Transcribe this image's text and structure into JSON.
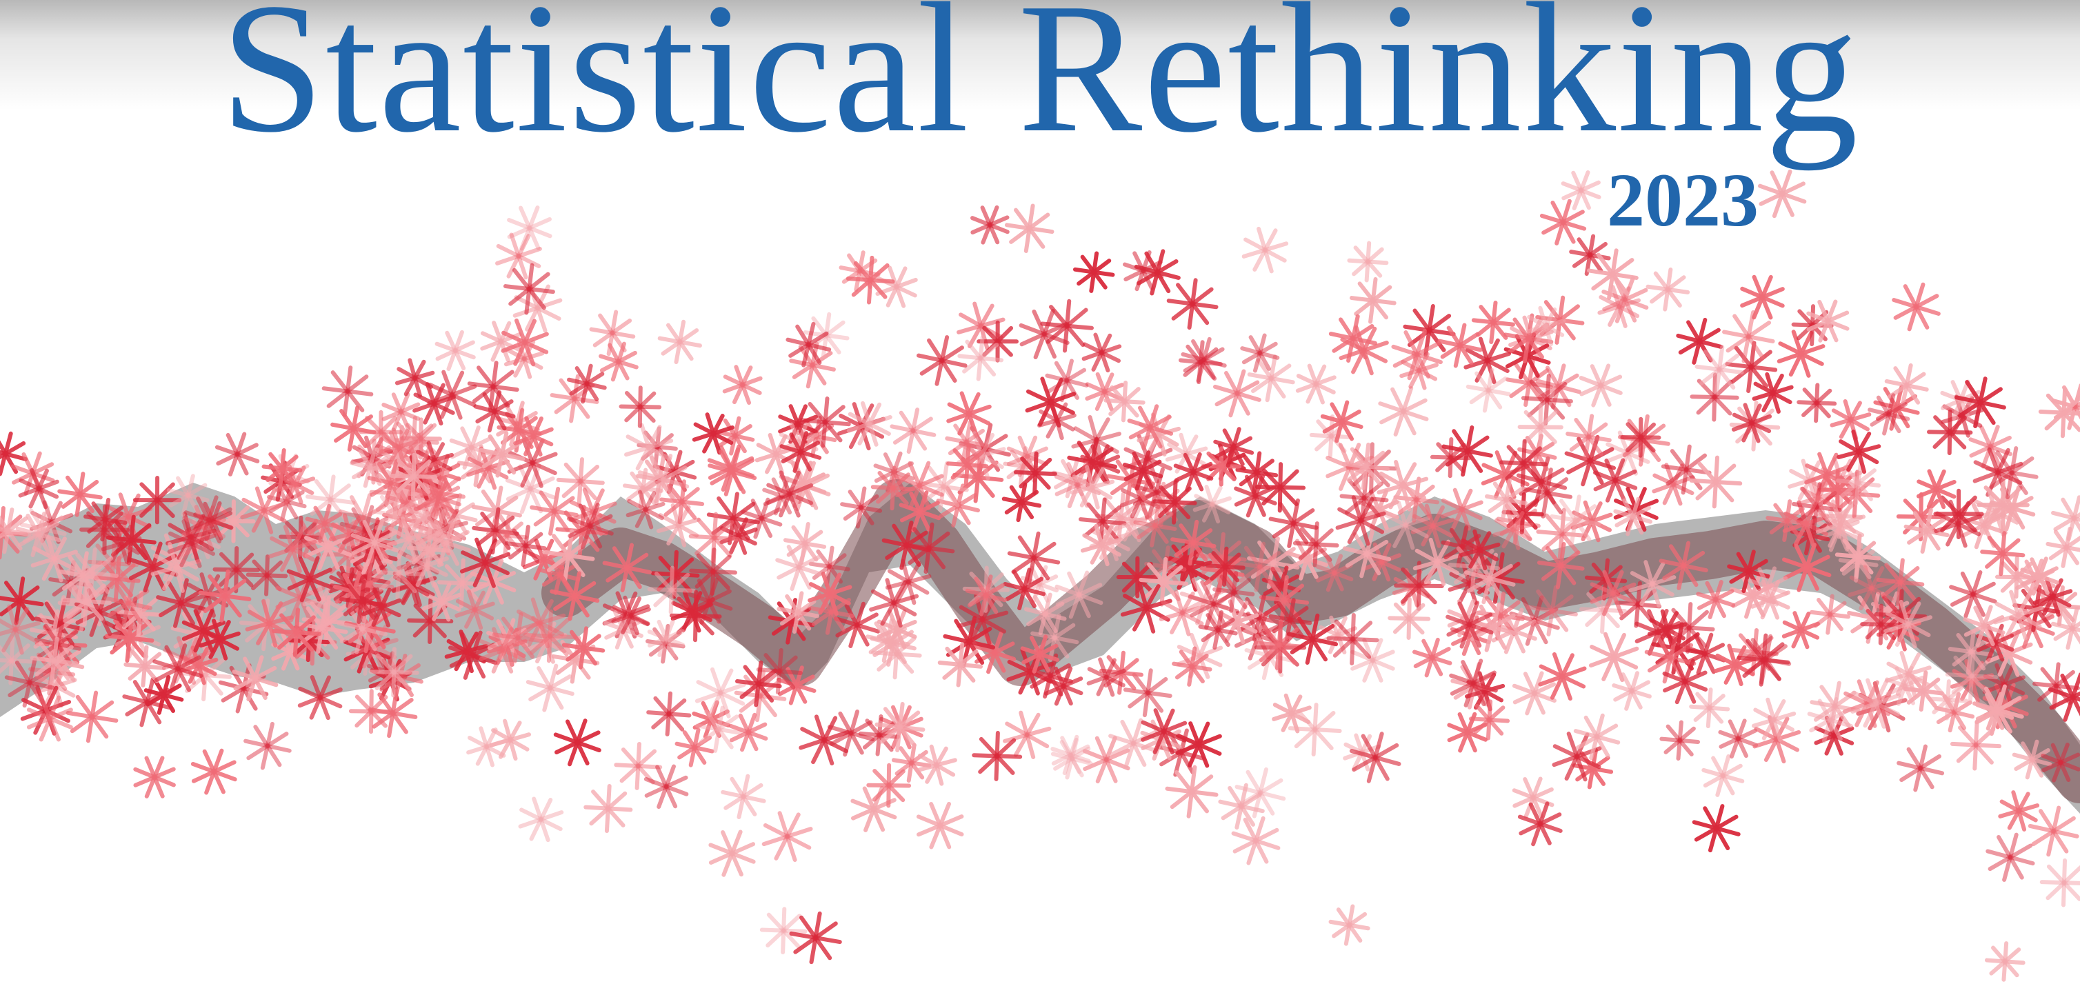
{
  "title": "Statistical Rethinking",
  "year": "2023",
  "colors": {
    "title": "#2166ac",
    "asterisk_light": "#f4a7ad",
    "asterisk_mid": "#ef6b76",
    "asterisk_dark": "#d9283a",
    "band": "#9a9a9a",
    "band_dark": "#6e5a5a"
  },
  "icons": [
    "asterisk-icon"
  ]
}
